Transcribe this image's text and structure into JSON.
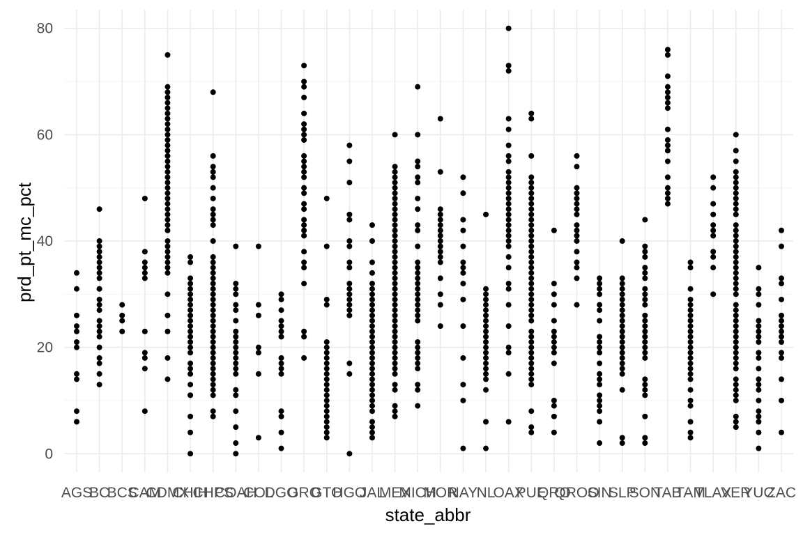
{
  "chart_data": {
    "type": "scatter",
    "xlabel": "state_abbr",
    "ylabel": "prd_pt_mc_pct",
    "categories": [
      "AGS",
      "BC",
      "BCS",
      "CAM",
      "CDMX",
      "CHIH",
      "CHPS",
      "COAH",
      "COL",
      "DGO",
      "GRO",
      "GTO",
      "HGO",
      "JAL",
      "MEX",
      "MICH",
      "MOR",
      "NAY",
      "NL",
      "OAX",
      "PUE",
      "QRO",
      "QROO",
      "SIN",
      "SLP",
      "SON",
      "TAB",
      "TAM",
      "TLAX",
      "VER",
      "YUC",
      "ZAC"
    ],
    "yticks": [
      0,
      20,
      40,
      60,
      80
    ],
    "ylim": [
      -3.5,
      83.5
    ],
    "grid": true,
    "points": {
      "AGS": [
        34,
        31,
        26,
        24,
        23,
        21,
        20,
        15,
        14,
        8,
        6
      ],
      "BC": [
        46,
        40,
        39,
        38,
        37,
        36,
        35,
        34,
        33,
        31,
        31,
        29,
        28,
        27,
        25,
        24,
        23,
        22,
        20,
        18,
        17,
        15,
        13
      ],
      "BCS": [
        28,
        26,
        25,
        23
      ],
      "CAM": [
        48,
        38,
        36,
        35,
        34,
        33,
        23,
        19,
        18,
        16,
        8
      ],
      "CDMX": [
        75,
        69,
        68,
        67,
        66,
        65,
        64,
        63,
        62,
        61,
        60,
        59,
        58,
        57,
        56,
        55,
        54,
        53,
        52,
        51,
        50,
        49,
        48,
        47,
        46,
        45,
        44,
        43,
        42,
        40,
        39,
        38,
        37,
        36,
        35,
        34,
        30,
        26,
        23,
        18,
        14
      ],
      "CHIH": [
        37,
        36,
        33,
        32,
        31,
        30,
        29,
        28,
        27,
        26,
        25,
        24,
        23,
        22,
        21,
        20,
        19,
        17,
        16,
        15,
        13,
        11,
        11,
        7,
        4,
        0
      ],
      "CHPS": [
        68,
        56,
        54,
        53,
        52,
        50,
        48,
        46,
        45,
        44,
        43,
        40,
        37,
        36,
        35,
        34,
        33,
        32,
        31,
        30,
        29,
        28,
        27,
        26,
        25,
        24,
        23,
        22,
        21,
        20,
        19,
        18,
        17,
        16,
        15,
        14,
        13,
        12,
        11,
        8,
        7
      ],
      "COAH": [
        39,
        32,
        31,
        30,
        28,
        27,
        25,
        23,
        22,
        21,
        20,
        19,
        18,
        17,
        16,
        15,
        12,
        11,
        8,
        5,
        2,
        0
      ],
      "COL": [
        39,
        28,
        26,
        20,
        19,
        15,
        3
      ],
      "DGO": [
        30,
        29,
        27,
        25,
        24,
        23,
        22,
        18,
        17,
        16,
        15,
        8,
        7,
        4,
        1
      ],
      "GRO": [
        73,
        70,
        69,
        67,
        64,
        62,
        61,
        60,
        59,
        56,
        55,
        54,
        53,
        52,
        50,
        49,
        47,
        46,
        44,
        43,
        42,
        41,
        38,
        36,
        35,
        32,
        23,
        22,
        18
      ],
      "GTO": [
        48,
        39,
        29,
        28,
        21,
        20,
        19,
        18,
        17,
        16,
        15,
        14,
        13,
        12,
        11,
        10,
        9,
        8,
        7,
        6,
        5,
        4,
        3
      ],
      "HGO": [
        58,
        55,
        51,
        45,
        44,
        40,
        39,
        36,
        35,
        32,
        31,
        30,
        29,
        28,
        27,
        26,
        17,
        15,
        0
      ],
      "JAL": [
        43,
        40,
        36,
        34,
        32,
        31,
        30,
        29,
        28,
        27,
        26,
        25,
        24,
        23,
        22,
        21,
        20,
        19,
        18,
        17,
        16,
        15,
        14,
        13,
        12,
        11,
        10,
        9,
        8,
        6,
        5,
        4,
        3
      ],
      "MEX": [
        60,
        54,
        53,
        52,
        51,
        50,
        49,
        48,
        47,
        46,
        45,
        44,
        43,
        42,
        41,
        40,
        39,
        38,
        37,
        36,
        35,
        34,
        33,
        32,
        31,
        30,
        29,
        28,
        27,
        26,
        25,
        24,
        23,
        22,
        21,
        20,
        19,
        18,
        17,
        16,
        15,
        13,
        12,
        9,
        8,
        7
      ],
      "MICH": [
        69,
        60,
        55,
        54,
        52,
        51,
        48,
        46,
        43,
        42,
        39,
        36,
        35,
        34,
        33,
        32,
        31,
        30,
        29,
        28,
        27,
        26,
        25,
        21,
        20,
        19,
        18,
        17,
        16,
        13,
        12,
        9
      ],
      "MOR": [
        63,
        53,
        46,
        45,
        44,
        43,
        42,
        41,
        40,
        39,
        38,
        37,
        36,
        33,
        30,
        28,
        24
      ],
      "NAY": [
        52,
        49,
        44,
        42,
        39,
        36,
        35,
        34,
        32,
        29,
        24,
        18,
        13,
        10,
        1
      ],
      "NL": [
        45,
        31,
        30,
        29,
        28,
        27,
        26,
        25,
        24,
        23,
        22,
        21,
        20,
        19,
        18,
        17,
        16,
        15,
        14,
        12,
        6,
        1
      ],
      "OAX": [
        80,
        73,
        72,
        63,
        61,
        58,
        56,
        55,
        53,
        52,
        51,
        50,
        49,
        48,
        47,
        46,
        45,
        44,
        43,
        42,
        41,
        40,
        39,
        37,
        35,
        32,
        31,
        28,
        24,
        20,
        19,
        15,
        6
      ],
      "PUE": [
        64,
        63,
        56,
        52,
        51,
        50,
        49,
        48,
        47,
        46,
        45,
        44,
        43,
        42,
        41,
        40,
        39,
        38,
        37,
        36,
        35,
        34,
        33,
        32,
        31,
        30,
        29,
        28,
        27,
        26,
        25,
        23,
        22,
        21,
        20,
        19,
        18,
        17,
        16,
        15,
        14,
        13,
        8,
        5,
        4
      ],
      "QRO": [
        42,
        32,
        30,
        28,
        25,
        23,
        22,
        21,
        20,
        19,
        17,
        10,
        9,
        7,
        4
      ],
      "QROO": [
        56,
        54,
        50,
        49,
        48,
        47,
        46,
        45,
        43,
        42,
        41,
        40,
        38,
        36,
        35,
        33,
        28
      ],
      "SIN": [
        33,
        32,
        31,
        30,
        28,
        27,
        25,
        22,
        21,
        20,
        19,
        17,
        15,
        14,
        13,
        11,
        10,
        9,
        8,
        6,
        2
      ],
      "SLP": [
        40,
        33,
        32,
        31,
        30,
        29,
        28,
        27,
        26,
        25,
        24,
        23,
        22,
        21,
        20,
        19,
        18,
        17,
        16,
        15,
        12,
        3,
        2
      ],
      "SON": [
        44,
        39,
        38,
        37,
        35,
        34,
        33,
        31,
        30,
        29,
        28,
        26,
        25,
        24,
        23,
        22,
        21,
        20,
        19,
        18,
        14,
        13,
        12,
        11,
        7,
        3,
        2
      ],
      "TAB": [
        76,
        75,
        71,
        69,
        68,
        67,
        66,
        65,
        61,
        59,
        58,
        57,
        55,
        52,
        50,
        49,
        48,
        47
      ],
      "TAM": [
        36,
        35,
        31,
        29,
        28,
        27,
        26,
        25,
        24,
        23,
        22,
        21,
        20,
        19,
        18,
        17,
        16,
        15,
        14,
        12,
        10,
        9,
        6,
        4,
        3
      ],
      "TLAX": [
        52,
        50,
        47,
        45,
        43,
        42,
        41,
        38,
        37,
        35,
        30
      ],
      "VER": [
        60,
        57,
        55,
        53,
        52,
        51,
        50,
        49,
        48,
        47,
        46,
        45,
        43,
        42,
        41,
        40,
        39,
        38,
        37,
        36,
        35,
        34,
        33,
        32,
        31,
        30,
        28,
        27,
        26,
        25,
        24,
        23,
        22,
        21,
        20,
        19,
        18,
        17,
        16,
        14,
        13,
        12,
        11,
        10,
        7,
        6,
        5
      ],
      "YUC": [
        35,
        31,
        30,
        28,
        25,
        24,
        23,
        22,
        21,
        19,
        18,
        16,
        14,
        13,
        12,
        10,
        8,
        7,
        6,
        4,
        1
      ],
      "ZAC": [
        42,
        39,
        33,
        32,
        29,
        26,
        25,
        24,
        23,
        22,
        21,
        19,
        18,
        14,
        10,
        4
      ]
    }
  }
}
